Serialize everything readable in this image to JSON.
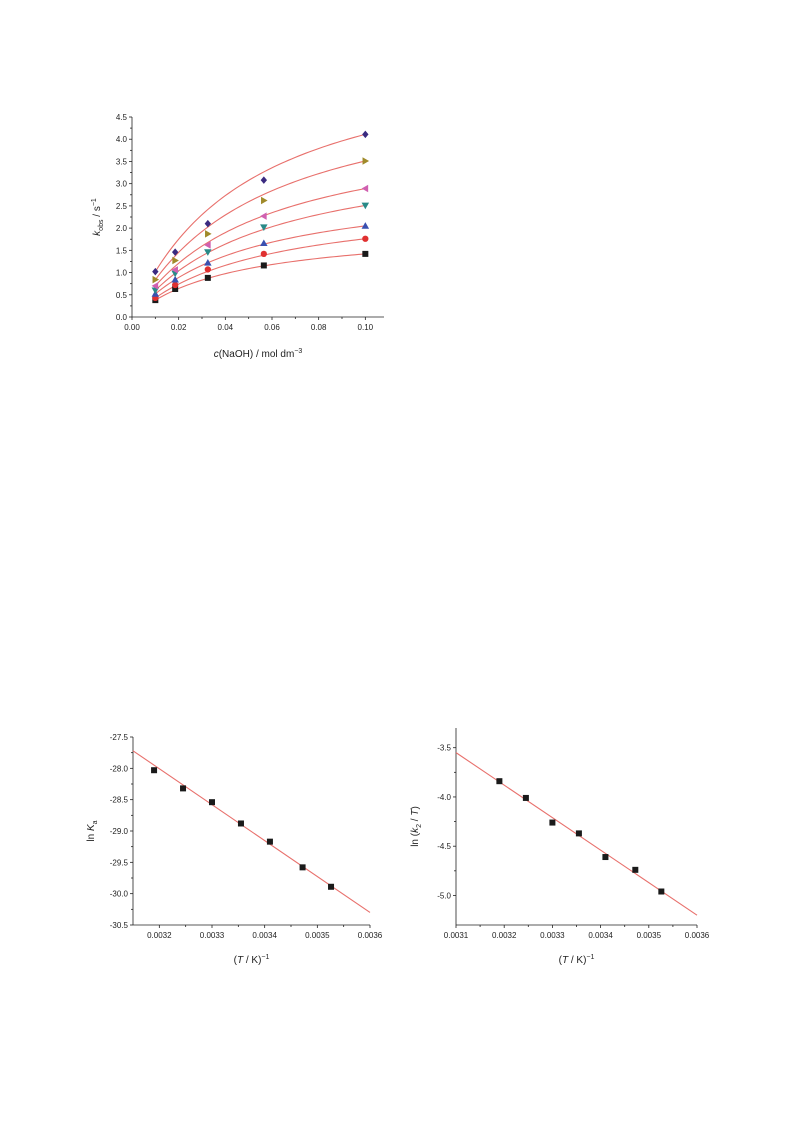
{
  "chart_data": [
    {
      "id": "chart1",
      "type": "scatter",
      "xlabel": {
        "pre": "",
        "italic": "c",
        "post": "(NaOH) / mol dm",
        "sup": "−3"
      },
      "ylabel": {
        "italic": "k",
        "sub": "obs",
        "post": " / s",
        "sup": "−1"
      },
      "xlim": [
        0.0,
        0.108
      ],
      "ylim": [
        0.0,
        4.5
      ],
      "xticks": [
        0.0,
        0.02,
        0.04,
        0.06,
        0.08,
        0.1
      ],
      "xtick_labels": [
        "0.00",
        "0.02",
        "0.04",
        "0.06",
        "0.08",
        "0.10"
      ],
      "yticks": [
        0.0,
        0.5,
        1.0,
        1.5,
        2.0,
        2.5,
        3.0,
        3.5,
        4.0,
        4.5
      ],
      "ytick_labels": [
        "0.0",
        "0.5",
        "1.0",
        "1.5",
        "2.0",
        "2.5",
        "3.0",
        "3.5",
        "4.0",
        "4.5"
      ],
      "fit_color": "#e8706c",
      "x": [
        0.01,
        0.0185,
        0.0325,
        0.0565,
        0.1
      ],
      "series": [
        {
          "marker": "square",
          "color": "#1a1a1a",
          "values": [
            0.38,
            0.63,
            0.88,
            1.16,
            1.42
          ]
        },
        {
          "marker": "circle",
          "color": "#e03030",
          "values": [
            0.43,
            0.72,
            1.07,
            1.42,
            1.76
          ]
        },
        {
          "marker": "triangle-up",
          "color": "#3a50b0",
          "values": [
            0.52,
            0.84,
            1.22,
            1.66,
            2.05
          ]
        },
        {
          "marker": "triangle-down",
          "color": "#2a8a88",
          "values": [
            0.6,
            0.98,
            1.46,
            2.02,
            2.51
          ]
        },
        {
          "marker": "triangle-left",
          "color": "#d060b0",
          "values": [
            0.7,
            1.06,
            1.62,
            2.27,
            2.89
          ]
        },
        {
          "marker": "triangle-right",
          "color": "#a08a2a",
          "values": [
            0.84,
            1.27,
            1.87,
            2.62,
            3.51
          ]
        },
        {
          "marker": "diamond",
          "color": "#3a2a80",
          "values": [
            1.02,
            1.46,
            2.1,
            3.08,
            4.11
          ]
        }
      ]
    },
    {
      "id": "chart2",
      "type": "scatter",
      "xlabel": {
        "pre": "(",
        "italic": "T",
        "post": " / K)",
        "sup": "−1"
      },
      "ylabel": {
        "pre": "ln ",
        "italic": "K",
        "sub": "a"
      },
      "xlim": [
        0.00315,
        0.0036
      ],
      "ylim": [
        -30.5,
        -27.5
      ],
      "xticks": [
        0.0032,
        0.0033,
        0.0034,
        0.0035,
        0.0036
      ],
      "xtick_labels": [
        "0.0032",
        "0.0033",
        "0.0034",
        "0.0035",
        "0.0036"
      ],
      "yticks": [
        -27.5,
        -28.0,
        -28.5,
        -29.0,
        -29.5,
        -30.0,
        -30.5
      ],
      "ytick_labels": [
        "-27.5",
        "-28.0",
        "-28.5",
        "-29.0",
        "-29.5",
        "-30.0",
        "-30.5"
      ],
      "fit_color": "#e8706c",
      "fit_line": {
        "x": [
          0.00315,
          0.0036
        ],
        "y": [
          -27.72,
          -30.3
        ]
      },
      "points": {
        "marker": "square",
        "color": "#1a1a1a",
        "x": [
          0.00319,
          0.003245,
          0.0033,
          0.003355,
          0.00341,
          0.003472,
          0.003526
        ],
        "y": [
          -28.03,
          -28.32,
          -28.54,
          -28.88,
          -29.17,
          -29.58,
          -29.89
        ]
      }
    },
    {
      "id": "chart3",
      "type": "scatter",
      "xlabel": {
        "pre": "(",
        "italic": "T",
        "post": " / K)",
        "sup": "−1"
      },
      "ylabel": {
        "pre": "ln (",
        "italic": "k",
        "sub": "2",
        "post2": " / ",
        "italic2": "T",
        "post3": ")"
      },
      "xlim": [
        0.0031,
        0.0036
      ],
      "ylim": [
        -5.3,
        -3.3
      ],
      "xticks": [
        0.0031,
        0.0032,
        0.0033,
        0.0034,
        0.0035,
        0.0036
      ],
      "xtick_labels": [
        "0.0031",
        "0.0032",
        "0.0033",
        "0.0034",
        "0.0035",
        "0.0036"
      ],
      "yticks": [
        -3.5,
        -4.0,
        -4.5,
        -5.0
      ],
      "ytick_labels": [
        "-3.5",
        "-4.0",
        "-4.5",
        "-5.0"
      ],
      "fit_color": "#e8706c",
      "fit_line": {
        "x": [
          0.0031,
          0.0036
        ],
        "y": [
          -3.55,
          -5.2
        ]
      },
      "points": {
        "marker": "square",
        "color": "#1a1a1a",
        "x": [
          0.00319,
          0.003245,
          0.0033,
          0.003355,
          0.00341,
          0.003472,
          0.003526
        ],
        "y": [
          -3.84,
          -4.01,
          -4.26,
          -4.37,
          -4.61,
          -4.74,
          -4.96
        ]
      }
    }
  ]
}
